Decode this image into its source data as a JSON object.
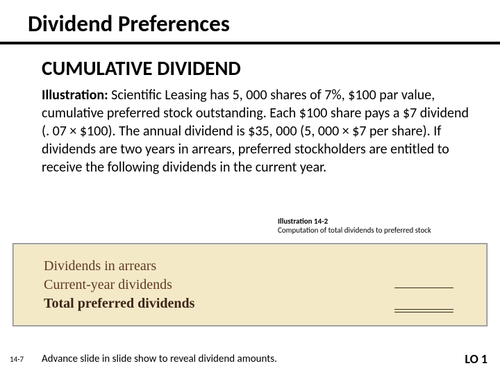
{
  "title": "Dividend Preferences",
  "heading": "CUMULATIVE DIVIDEND",
  "paragraph": {
    "lead": "Illustration:",
    "text": "  Scientific Leasing has 5, 000 shares of 7%, $100 par value, cumulative preferred stock outstanding. Each $100 share pays a $7 dividend (. 07 × $100). The annual dividend is $35, 000 (5, 000 × $7 per share). If dividends are two years in arrears, preferred stockholders are entitled to receive the following dividends in the current year."
  },
  "illustration_caption": {
    "bold": "Illustration 14-2",
    "text": "Computation of total dividends to preferred stock"
  },
  "table": {
    "rows": [
      {
        "label": "Dividends in arrears",
        "value": ""
      },
      {
        "label": "Current-year dividends",
        "value": ""
      }
    ],
    "total": {
      "label": "Total preferred dividends",
      "value": ""
    },
    "background_color": "#f3e9c7",
    "text_color": "#613a25"
  },
  "footer": {
    "page_number": "14-7",
    "note": "Advance slide in slide show to reveal dividend amounts.",
    "lo": "LO 1"
  }
}
